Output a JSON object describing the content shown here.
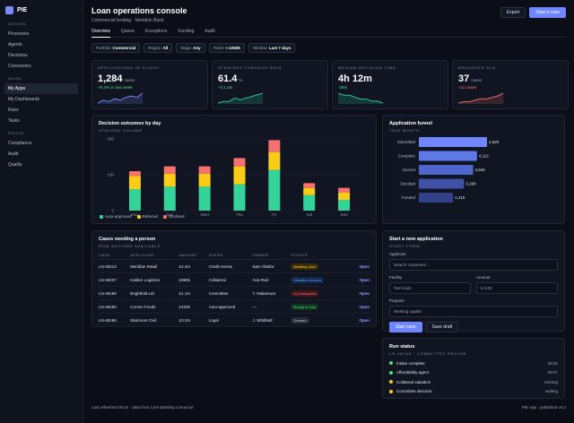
{
  "brand": {
    "name": "PIE"
  },
  "sidebar": {
    "sections": [
      {
        "title": "DESIGN",
        "items": [
          {
            "label": "Processes"
          },
          {
            "label": "Agents"
          },
          {
            "label": "Decisions"
          },
          {
            "label": "Connectors"
          }
        ]
      },
      {
        "title": "WORK",
        "items": [
          {
            "label": "My Apps",
            "active": true
          },
          {
            "label": "My Dashboards"
          },
          {
            "label": "Runs"
          },
          {
            "label": "Tasks"
          }
        ]
      },
      {
        "title": "PROVE",
        "items": [
          {
            "label": "Compliance"
          },
          {
            "label": "Audit"
          },
          {
            "label": "Quality"
          }
        ]
      }
    ]
  },
  "header": {
    "title": "Loan operations console",
    "subtitle": "Commercial lending · Meridian Bank",
    "export_label": "Export",
    "start_label": "Start a case"
  },
  "tabs": [
    {
      "label": "Overview",
      "active": true
    },
    {
      "label": "Queue"
    },
    {
      "label": "Exceptions"
    },
    {
      "label": "Funding"
    },
    {
      "label": "Audit"
    }
  ],
  "filters": [
    {
      "key": "Portfolio",
      "value": "Commercial"
    },
    {
      "key": "Region",
      "value": "All"
    },
    {
      "key": "Stage",
      "value": "Any"
    },
    {
      "key": "Ticket",
      "value": "> £250k"
    },
    {
      "key": "Window",
      "value": "Last 7 days"
    }
  ],
  "kpis": [
    {
      "label": "APPLICATIONS IN FLIGHT",
      "value": "1,284",
      "unit": "cases",
      "delta": "+6.2% vs last week",
      "delta_color": "#4ade80",
      "spark_color": "#7c8cff",
      "spark": [
        3,
        5,
        4,
        6,
        5,
        7,
        8,
        7,
        10
      ]
    },
    {
      "label": "STRAIGHT-THROUGH RATE",
      "value": "61.4",
      "unit": "%",
      "delta": "+3.1 pts",
      "delta_color": "#4ade80",
      "spark_color": "#34d399",
      "spark": [
        3,
        4,
        4,
        6,
        5,
        6,
        7,
        8,
        9
      ]
    },
    {
      "label": "MEDIAN DECISION TIME",
      "value": "4h 12m",
      "unit": "",
      "delta": "-38m",
      "delta_color": "#4ade80",
      "spark_color": "#34d399",
      "spark": [
        9,
        8,
        8,
        7,
        6,
        6,
        5,
        5,
        4
      ]
    },
    {
      "label": "BREACHED SLA",
      "value": "37",
      "unit": "cases",
      "delta": "+11 cases",
      "delta_color": "#f87171",
      "spark_color": "#f87171",
      "spark": [
        2,
        3,
        3,
        4,
        5,
        5,
        6,
        7,
        9
      ]
    }
  ],
  "outcomes": {
    "title": "Decision outcomes by day",
    "subtitle": "STACKED VOLUME",
    "chart_data": {
      "type": "bar",
      "stacked": true,
      "categories": [
        "Mon",
        "Tue",
        "Wed",
        "Thu",
        "Fri",
        "Sat",
        "Sun"
      ],
      "series": [
        {
          "name": "Auto-approved",
          "color": "#34d399",
          "values": [
            90,
            100,
            100,
            110,
            170,
            65,
            45
          ]
        },
        {
          "name": "Referred",
          "color": "#facc15",
          "values": [
            55,
            55,
            55,
            75,
            75,
            30,
            30
          ]
        },
        {
          "name": "Declined",
          "color": "#f87171",
          "values": [
            20,
            30,
            30,
            35,
            50,
            20,
            20
          ]
        }
      ],
      "yticks": [
        0,
        150,
        300
      ],
      "ylim": [
        0,
        300
      ],
      "grid": true,
      "legend": "bottom-left"
    }
  },
  "funnel": {
    "title": "Application funnel",
    "subtitle": "THIS MONTH",
    "chart_data": {
      "type": "bar",
      "orientation": "horizontal",
      "categories": [
        "Submitted",
        "Complete",
        "Scored",
        "Decided",
        "Funded"
      ],
      "values": [
        4820,
        4112,
        3840,
        3190,
        2415
      ],
      "labels": [
        "4,820",
        "4,112",
        "3,840",
        "3,190",
        "2,415"
      ],
      "xlim": [
        0,
        4820
      ]
    }
  },
  "cases": {
    "title": "Cases needing a person",
    "subtitle": "ROW ACTIONS AVAILABLE",
    "columns": [
      "CASE",
      "APPLICANT",
      "AMOUNT",
      "STAGE",
      "OWNER",
      "STATUS",
      ""
    ],
    "rows": [
      {
        "id": "LN-48213",
        "applicant": "Meridian Retail",
        "amount": "£2.4m",
        "stage": "Credit review",
        "owner": "Sam Okafor",
        "status": "Awaiting docs",
        "status_bg": "#3a2e10",
        "status_fg": "#facc15",
        "action": "Open"
      },
      {
        "id": "LN-48207",
        "applicant": "Halden Logistics",
        "amount": "£860k",
        "stage": "Collateral",
        "owner": "Ana Ruiz",
        "status": "Valuation booked",
        "status_bg": "#12284a",
        "status_fg": "#60a5fa",
        "action": "Open"
      },
      {
        "id": "LN-48198",
        "applicant": "Brightfold Ltd",
        "amount": "£1.1m",
        "stage": "Committee",
        "owner": "T. Nakamura",
        "status": "SLA breached",
        "status_bg": "#3f1619",
        "status_fg": "#f87171",
        "action": "Open"
      },
      {
        "id": "LN-48190",
        "applicant": "Corven Foods",
        "amount": "£420k",
        "stage": "Auto-approved",
        "owner": "—",
        "status": "Ready to fund",
        "status_bg": "#11331f",
        "status_fg": "#4ade80",
        "action": "Open"
      },
      {
        "id": "LN-48186",
        "applicant": "Stanmore Civil",
        "amount": "£3.2m",
        "stage": "Legal",
        "owner": "J. Whitfield",
        "status": "Queued",
        "status_bg": "#262b38",
        "status_fg": "#c7ccd8",
        "action": "Open"
      }
    ]
  },
  "start_form": {
    "title": "Start a new application",
    "subtitle": "START FORM",
    "applicant_label": "Applicant",
    "applicant_placeholder": "Search customers...",
    "facility_label": "Facility",
    "facility_value": "Term loan",
    "amount_label": "Amount",
    "amount_value": "£ 0.00",
    "purpose_label": "Purpose",
    "purpose_value": "Working capital",
    "start_label": "Start case",
    "draft_label": "Save draft"
  },
  "run_status": {
    "title": "Run status",
    "subtitle": "LN-48198 · COMMITTEE REVIEW",
    "steps": [
      {
        "label": "Intake complete",
        "meta": "09:02",
        "color": "#4ade80"
      },
      {
        "label": "Affordability agent",
        "meta": "09:07",
        "color": "#4ade80"
      },
      {
        "label": "Collateral valuation",
        "meta": "running",
        "color": "#facc15"
      },
      {
        "label": "Committee decision",
        "meta": "waiting",
        "color": "#facc15"
      }
    ]
  },
  "footer": {
    "left": "Last refreshed 09:42 · data from Core Banking connector",
    "right": "PIE App · published v4.2"
  }
}
